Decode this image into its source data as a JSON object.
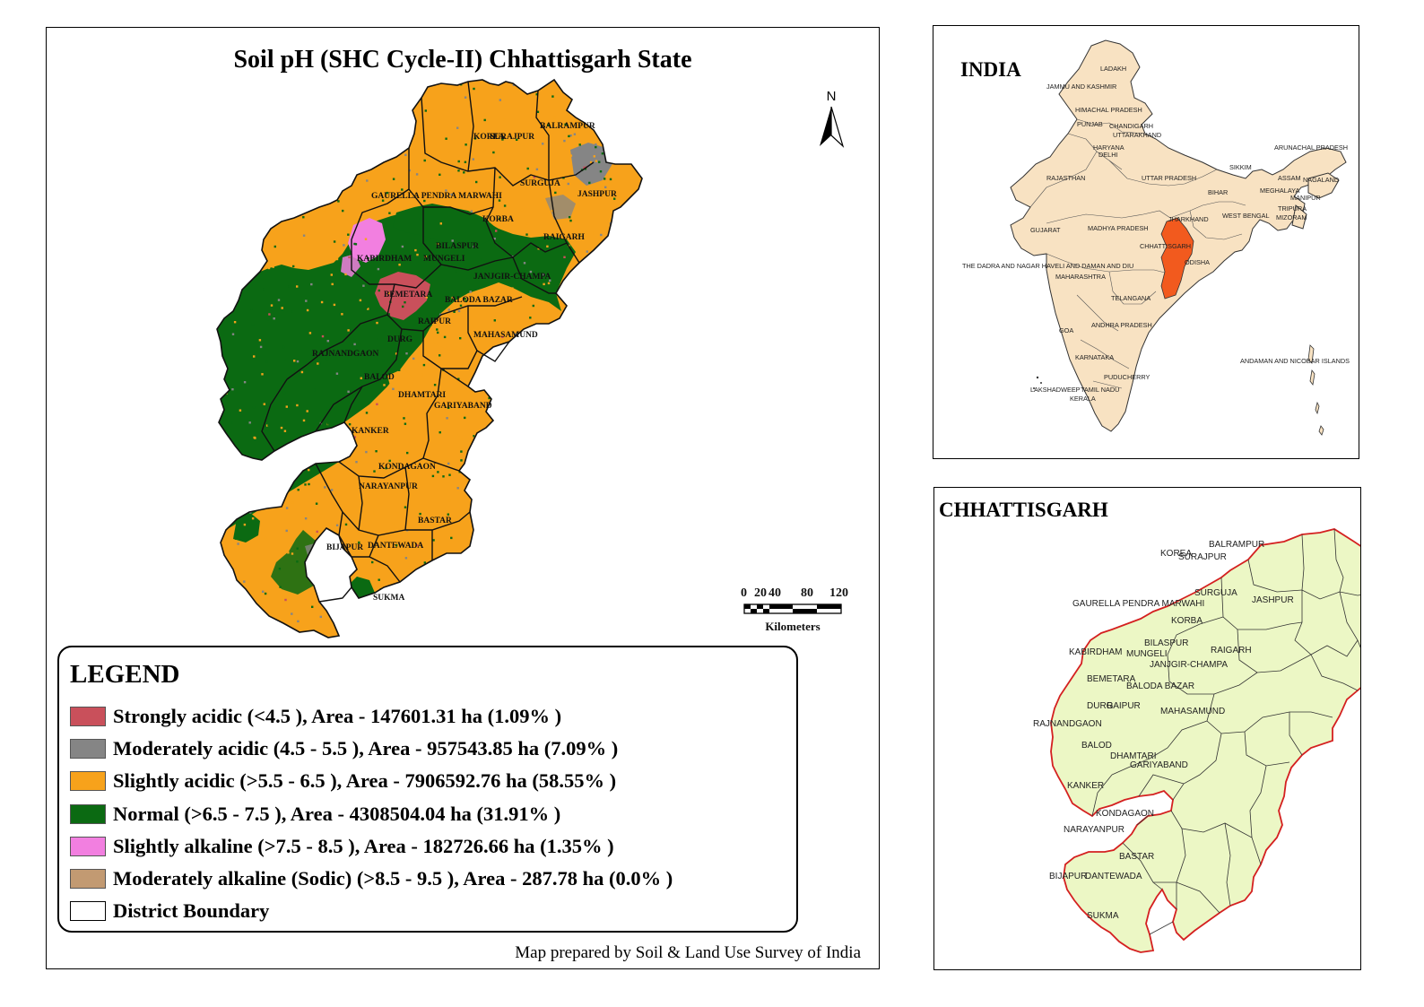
{
  "map": {
    "title": "Soil pH (SHC Cycle-II) Chhattisgarh State",
    "north_label": "N",
    "scale_ticks": [
      "0",
      "20",
      "40",
      "80",
      "120"
    ],
    "scale_unit": "Kilometers",
    "districts": [
      "KOREA",
      "SURAJPUR",
      "BALRAMPUR",
      "SURGUJA",
      "JASHPUR",
      "GAURELLA PENDRA MARWAHI",
      "KORBA",
      "RAIGARH",
      "BILASPUR",
      "KABIRDHAM",
      "MUNGELI",
      "JANJGIR-CHAMPA",
      "BEMETARA",
      "BALODA BAZAR",
      "RAIPUR",
      "MAHASAMUND",
      "DURG",
      "RAJNANDGAON",
      "BALOD",
      "DHAMTARI",
      "GARIYABAND",
      "KANKER",
      "KONDAGAON",
      "NARAYANPUR",
      "BASTAR",
      "BIJAPUR",
      "DANTEWADA",
      "SUKMA"
    ],
    "credit": "Map prepared by Soil & Land Use Survey of India"
  },
  "legend": {
    "heading": "LEGEND",
    "items": [
      {
        "label": "Strongly acidic  (<4.5 ), Area - 147601.31  ha (1.09% )",
        "color": "#c9505b"
      },
      {
        "label": "Moderately acidic  (4.5 - 5.5 ), Area - 957543.85  ha (7.09% )",
        "color": "#858585"
      },
      {
        "label": "Slightly acidic  (>5.5 - 6.5 ), Area - 7906592.76  ha (58.55% )",
        "color": "#f7a21b"
      },
      {
        "label": "Normal  (>6.5 - 7.5 ), Area - 4308504.04  ha (31.91% )",
        "color": "#0b6a12"
      },
      {
        "label": "Slightly alkaline  (>7.5 - 8.5 ), Area - 182726.66  ha (1.35% )",
        "color": "#f27fe0"
      },
      {
        "label": "Moderately alkaline (Sodic)  (>8.5 - 9.5 ), Area - 287.78  ha (0.0% )",
        "color": "#c29a72"
      },
      {
        "label": "District Boundary",
        "color": "#ffffff"
      }
    ]
  },
  "india_inset": {
    "title": "INDIA",
    "highlight_color": "#f25a1e",
    "fill_color": "#f8e2c2",
    "states": [
      "LADAKH",
      "JAMMU AND KASHMIR",
      "HIMACHAL PRADESH",
      "PUNJAB",
      "CHANDIGARH",
      "UTTARAKHAND",
      "HARYANA",
      "DELHI",
      "RAJASTHAN",
      "UTTAR PRADESH",
      "SIKKIM",
      "ARUNACHAL PRADESH",
      "ASSAM",
      "NAGALAND",
      "MEGHALAYA",
      "MANIPUR",
      "BIHAR",
      "TRIPURA",
      "MIZORAM",
      "JHARKHAND",
      "WEST BENGAL",
      "GUJARAT",
      "MADHYA PRADESH",
      "CHHATTISGARH",
      "ODISHA",
      "THE DADRA AND NAGAR HAVELI AND DAMAN AND DIU",
      "MAHARASHTRA",
      "TELANGANA",
      "ANDHRA PRADESH",
      "GOA",
      "KARNATAKA",
      "ANDAMAN AND NICOBAR ISLANDS",
      "PUDUCHERRY",
      "LAKSHADWEEP",
      "TAMIL NADU",
      "KERALA"
    ]
  },
  "cg_inset": {
    "title": "CHHATTISGARH",
    "fill_color": "#ecf7c5",
    "border_color": "#d42020",
    "districts": [
      "KOREA",
      "SURAJPUR",
      "BALRAMPUR",
      "GAURELLA PENDRA MARWAHI",
      "SURGUJA",
      "JASHPUR",
      "KORBA",
      "BILASPUR",
      "KABIRDHAM",
      "MUNGELI",
      "RAIGARH",
      "JANJGIR-CHAMPA",
      "BEMETARA",
      "BALODA BAZAR",
      "DURG",
      "RAIPUR",
      "MAHASAMUND",
      "RAJNANDGAON",
      "BALOD",
      "DHAMTARI",
      "GARIYABAND",
      "KANKER",
      "KONDAGAON",
      "NARAYANPUR",
      "BASTAR",
      "BIJAPUR",
      "DANTEWADA",
      "SUKMA"
    ]
  }
}
